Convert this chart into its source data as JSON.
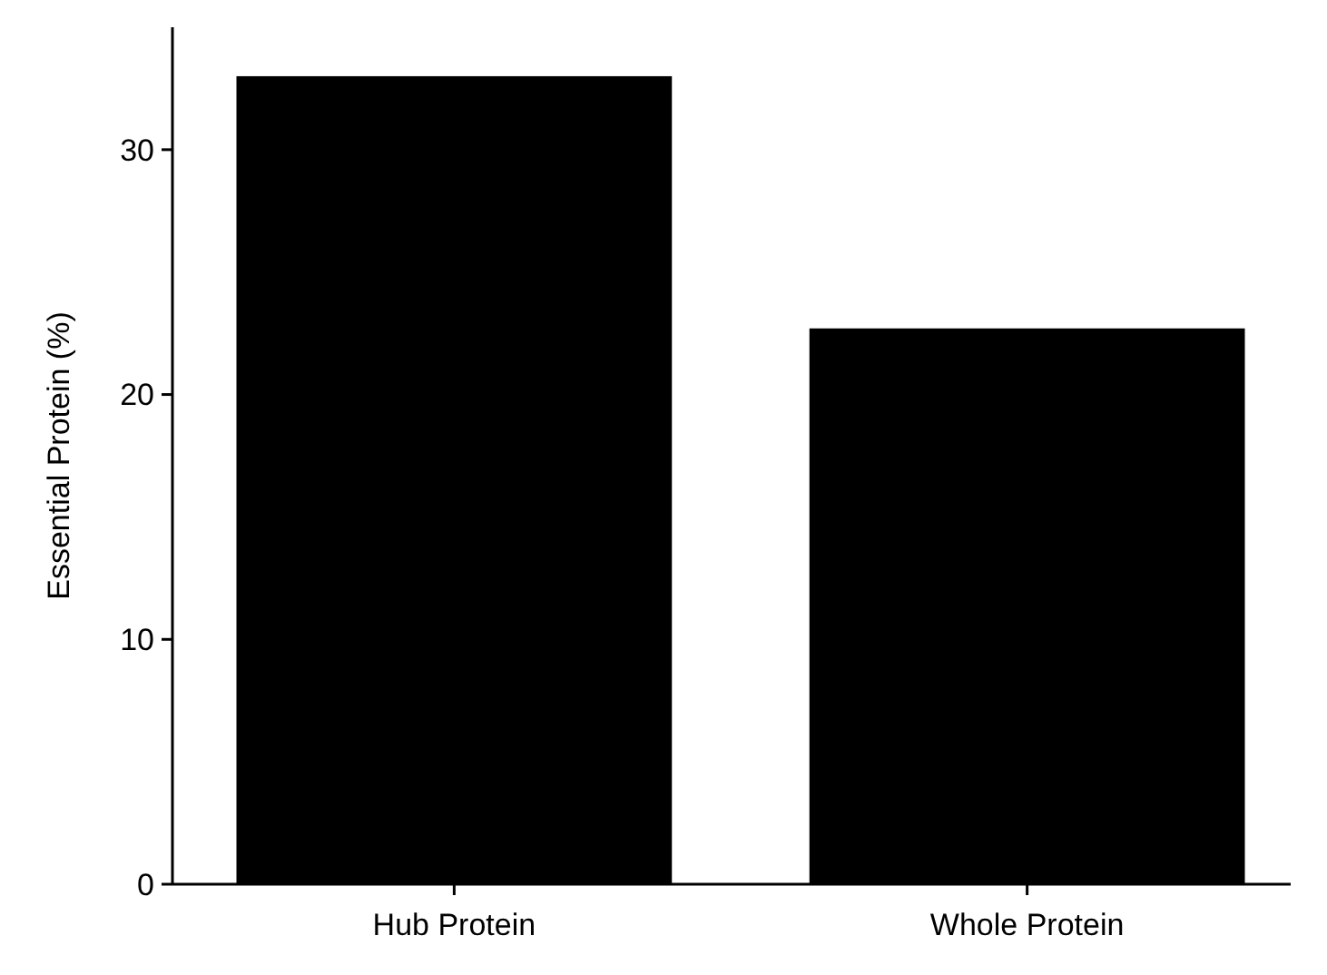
{
  "chart_data": {
    "type": "bar",
    "ylabel": "Essential Protein (%)",
    "categories": [
      "Hub Protein",
      "Whole Protein"
    ],
    "values": [
      33,
      22.7
    ],
    "color": "#000000",
    "ylim": [
      0,
      35
    ],
    "yticks": [
      0,
      10,
      20,
      30
    ],
    "grid": false
  }
}
